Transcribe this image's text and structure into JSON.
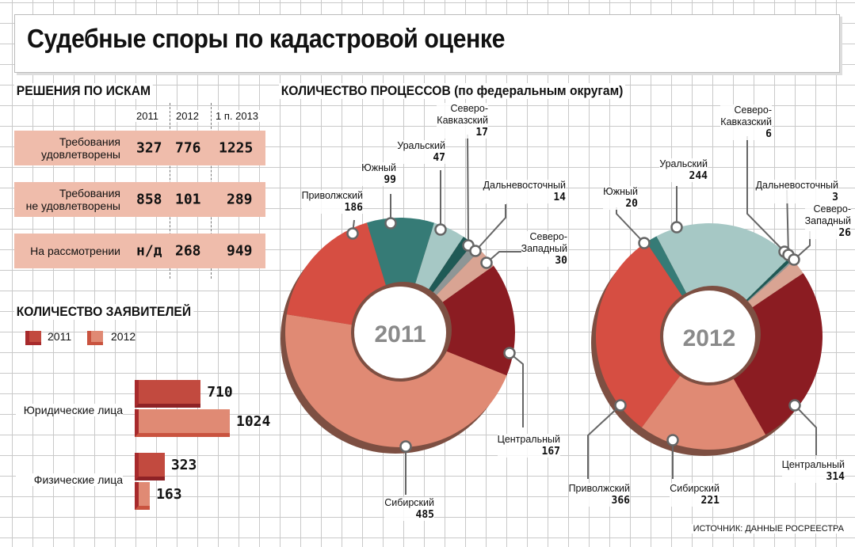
{
  "title": "Судебные споры по кадастровой оценке",
  "decisions": {
    "heading": "РЕШЕНИЯ ПО ИСКАМ",
    "columns": [
      "2011",
      "2012",
      "1 п. 2013"
    ],
    "rows": [
      {
        "label1": "Требования",
        "label2": "удовлетворены",
        "values": [
          "327",
          "776",
          "1225"
        ]
      },
      {
        "label1": "Требования",
        "label2": "не удовлетворены",
        "values": [
          "858",
          "101",
          "289"
        ]
      },
      {
        "label1": "На рассмотрении",
        "label2": "",
        "values": [
          "н/д",
          "268",
          "949"
        ]
      }
    ]
  },
  "applicants": {
    "heading": "КОЛИЧЕСТВО ЗАЯВИТЕЛЕЙ",
    "legend": [
      "2011",
      "2012"
    ],
    "colors": [
      "#c24a3f",
      "#e08a74"
    ]
  },
  "processes": {
    "heading": "КОЛИЧЕСТВО ПРОЦЕССОВ (по федеральным округам)"
  },
  "source": "ИСТОЧНИК: ДАННЫЕ РОСРЕЕСТРА",
  "chart_data": [
    {
      "type": "bar",
      "title": "КОЛИЧЕСТВО ЗАЯВИТЕЛЕЙ",
      "categories": [
        "Юридические лица",
        "Физические лица"
      ],
      "series": [
        {
          "name": "2011",
          "values": [
            710,
            323
          ]
        },
        {
          "name": "2012",
          "values": [
            1024,
            163
          ]
        }
      ],
      "xlim": [
        0,
        1024
      ]
    },
    {
      "type": "pie",
      "title": "2011",
      "center_label": "2011",
      "slices": [
        {
          "name": "Сибирский",
          "value": 485,
          "color": "#e08a74"
        },
        {
          "name": "Приволжский",
          "value": 186,
          "color": "#d64e42"
        },
        {
          "name": "Южный",
          "value": 99,
          "color": "#367b76"
        },
        {
          "name": "Уральский",
          "value": 47,
          "color": "#a6c8c5"
        },
        {
          "name": "Северо-Кавказский",
          "value": 17,
          "color": "#1f5a56"
        },
        {
          "name": "Дальневосточный",
          "value": 14,
          "color": "#8e9696"
        },
        {
          "name": "Северо-Западный",
          "value": 30,
          "color": "#d9a493"
        },
        {
          "name": "Центральный",
          "value": 167,
          "color": "#8b1c22"
        }
      ]
    },
    {
      "type": "pie",
      "title": "2012",
      "center_label": "2012",
      "slices": [
        {
          "name": "Центральный",
          "value": 314,
          "color": "#8b1c22"
        },
        {
          "name": "Сибирский",
          "value": 221,
          "color": "#e08a74"
        },
        {
          "name": "Приволжский",
          "value": 366,
          "color": "#d64e42"
        },
        {
          "name": "Южный",
          "value": 20,
          "color": "#367b76"
        },
        {
          "name": "Уральский",
          "value": 244,
          "color": "#a6c8c5"
        },
        {
          "name": "Северо-Кавказский",
          "value": 6,
          "color": "#1f5a56"
        },
        {
          "name": "Дальневосточный",
          "value": 3,
          "color": "#8e9696"
        },
        {
          "name": "Северо-Западный",
          "value": 26,
          "color": "#d9a493"
        }
      ]
    }
  ]
}
